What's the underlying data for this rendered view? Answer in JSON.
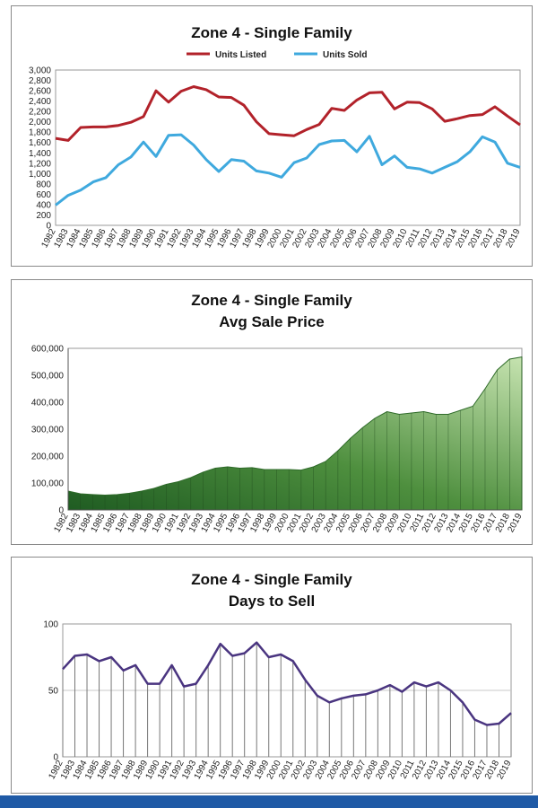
{
  "chart_data": [
    {
      "type": "line",
      "title": "Zone 4 - Single Family",
      "x": [
        "1982",
        "1983",
        "1984",
        "1985",
        "1986",
        "1987",
        "1988",
        "1989",
        "1990",
        "1991",
        "1992",
        "1993",
        "1994",
        "1995",
        "1996",
        "1997",
        "1998",
        "1999",
        "2000",
        "2001",
        "2002",
        "2003",
        "2004",
        "2005",
        "2006",
        "2007",
        "2008",
        "2009",
        "2010",
        "2011",
        "2012",
        "2013",
        "2014",
        "2015",
        "2016",
        "2017",
        "2018",
        "2019"
      ],
      "series": [
        {
          "name": "Units Listed",
          "color": "#b2222a",
          "values": [
            1680,
            1640,
            1890,
            1900,
            1900,
            1930,
            1990,
            2100,
            2600,
            2380,
            2590,
            2680,
            2620,
            2480,
            2470,
            2320,
            2000,
            1770,
            1750,
            1730,
            1850,
            1950,
            2260,
            2220,
            2420,
            2560,
            2570,
            2250,
            2380,
            2370,
            2250,
            2010,
            2060,
            2120,
            2140,
            2290,
            2110,
            1940
          ]
        },
        {
          "name": "Units Sold",
          "color": "#3fa9de",
          "values": [
            390,
            580,
            680,
            840,
            920,
            1170,
            1320,
            1610,
            1330,
            1740,
            1750,
            1550,
            1270,
            1040,
            1270,
            1240,
            1050,
            1010,
            930,
            1210,
            1300,
            1560,
            1630,
            1640,
            1420,
            1720,
            1170,
            1340,
            1120,
            1090,
            1010,
            1120,
            1230,
            1420,
            1710,
            1610,
            1200,
            1120
          ]
        }
      ],
      "ylim": [
        0,
        3000
      ],
      "yticks": [
        "0",
        "200",
        "400",
        "600",
        "800",
        "1,000",
        "1,200",
        "1,400",
        "1,600",
        "1,800",
        "2,000",
        "2,200",
        "2,400",
        "2,600",
        "2,800",
        "3,000"
      ],
      "legend": "top"
    },
    {
      "type": "area",
      "title": "Zone 4 - Single Family",
      "subtitle": "Avg Sale Price",
      "x": [
        "1982",
        "1983",
        "1984",
        "1985",
        "1986",
        "1987",
        "1988",
        "1989",
        "1990",
        "1991",
        "1992",
        "1993",
        "1994",
        "1995",
        "1996",
        "1997",
        "1998",
        "1999",
        "2000",
        "2001",
        "2002",
        "2003",
        "2004",
        "2005",
        "2006",
        "2007",
        "2008",
        "2009",
        "2010",
        "2011",
        "2012",
        "2013",
        "2014",
        "2015",
        "2016",
        "2017",
        "2018",
        "2019"
      ],
      "values": [
        70000,
        60000,
        57000,
        55000,
        57000,
        62000,
        70000,
        80000,
        95000,
        105000,
        120000,
        140000,
        155000,
        160000,
        155000,
        157000,
        150000,
        150000,
        150000,
        148000,
        160000,
        180000,
        220000,
        265000,
        305000,
        340000,
        365000,
        355000,
        360000,
        365000,
        355000,
        355000,
        370000,
        385000,
        450000,
        520000,
        560000,
        568000
      ],
      "ylim": [
        0,
        600000
      ],
      "yticks": [
        "0",
        "100,000",
        "200,000",
        "300,000",
        "400,000",
        "500,000",
        "600,000"
      ],
      "fill_top_color": "#c6e3b0",
      "fill_bottom_color": "#1f5c22"
    },
    {
      "type": "line",
      "title": "Zone 4 - Single Family",
      "subtitle": "Days to Sell",
      "x": [
        "1982",
        "1983",
        "1984",
        "1985",
        "1986",
        "1987",
        "1988",
        "1989",
        "1990",
        "1991",
        "1992",
        "1993",
        "1994",
        "1995",
        "1996",
        "1997",
        "1998",
        "1999",
        "2000",
        "2001",
        "2002",
        "2003",
        "2004",
        "2005",
        "2006",
        "2007",
        "2008",
        "2009",
        "2010",
        "2011",
        "2012",
        "2013",
        "2014",
        "2015",
        "2016",
        "2017",
        "2018",
        "2019"
      ],
      "series": [
        {
          "name": "",
          "color": "#4a3580",
          "values": [
            66,
            76,
            77,
            72,
            75,
            65,
            69,
            55,
            55,
            69,
            53,
            55,
            69,
            85,
            76,
            78,
            86,
            75,
            77,
            72,
            58,
            46,
            41,
            44,
            46,
            47,
            50,
            54,
            49,
            56,
            53,
            56,
            50,
            41,
            28,
            24,
            25,
            33
          ]
        }
      ],
      "ylim": [
        0,
        100
      ],
      "yticks": [
        "0",
        "50",
        "100"
      ]
    }
  ]
}
